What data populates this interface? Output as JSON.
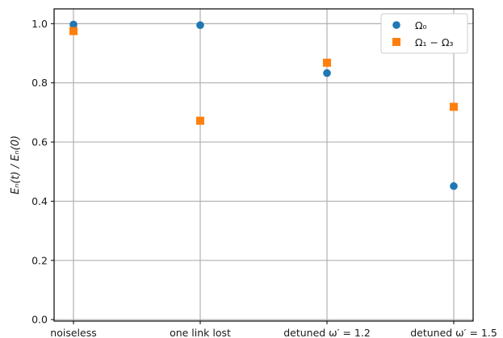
{
  "chart_data": {
    "type": "scatter",
    "categories": [
      "noiseless",
      "one link lost",
      "detuned ω′ = 1.2",
      "detuned ω′ = 1.5"
    ],
    "series": [
      {
        "name": "Ω₀",
        "marker": "circle",
        "color": "#1f77b4",
        "values": [
          0.997,
          0.995,
          0.833,
          0.451
        ]
      },
      {
        "name": "Ω₁ − Ω₃",
        "marker": "square",
        "color": "#ff7f0e",
        "values": [
          0.975,
          0.672,
          0.868,
          0.719
        ]
      }
    ],
    "title": "",
    "xlabel": "",
    "ylabel": "Eₙ(t) / Eₙ(0)",
    "ylim": [
      -0.005,
      1.05
    ],
    "yticks": [
      "0.0",
      "0.2",
      "0.4",
      "0.6",
      "0.8",
      "1.0"
    ],
    "grid": true,
    "legend_position": "top-right"
  }
}
